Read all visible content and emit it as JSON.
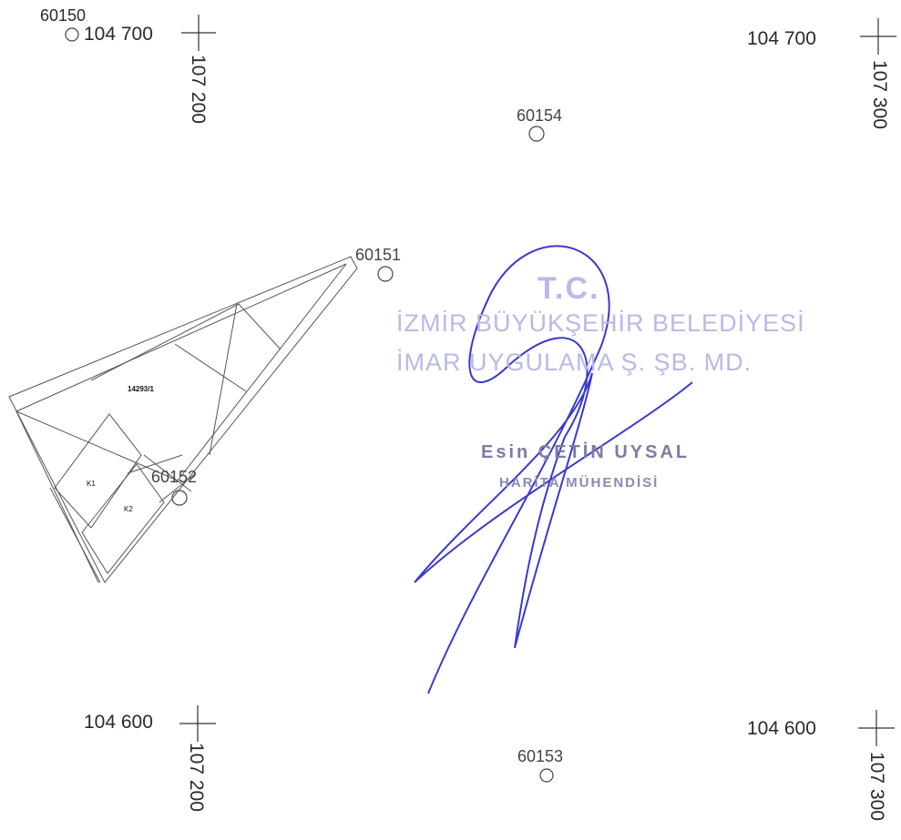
{
  "grid": {
    "top_left_easting": "104 700",
    "top_left_northing": "107 200",
    "top_right_easting": "104 700",
    "top_right_northing": "107 300",
    "bottom_left_easting": "104 600",
    "bottom_left_northing": "107 200",
    "bottom_right_easting": "104 600",
    "bottom_right_northing": "107 300"
  },
  "points": {
    "p60150": "60150",
    "p60151": "60151",
    "p60152": "60152",
    "p60153": "60153",
    "p60154": "60154"
  },
  "parcel": {
    "id": "14293/1",
    "building_1": "K1",
    "building_2": "K2"
  },
  "stamp": {
    "tc": "T.C.",
    "institution": "İZMİR BÜYÜKŞEHİR BELEDİYESİ",
    "department": "İMAR UYGULAMA Ş. ŞB. MD.",
    "name": "Esin ÇETİN UYSAL",
    "title": "HARİTA MÜHENDİSİ"
  },
  "colors": {
    "line": "#555555",
    "signature": "#3a3acc",
    "stamp": "#b9b9e8"
  }
}
